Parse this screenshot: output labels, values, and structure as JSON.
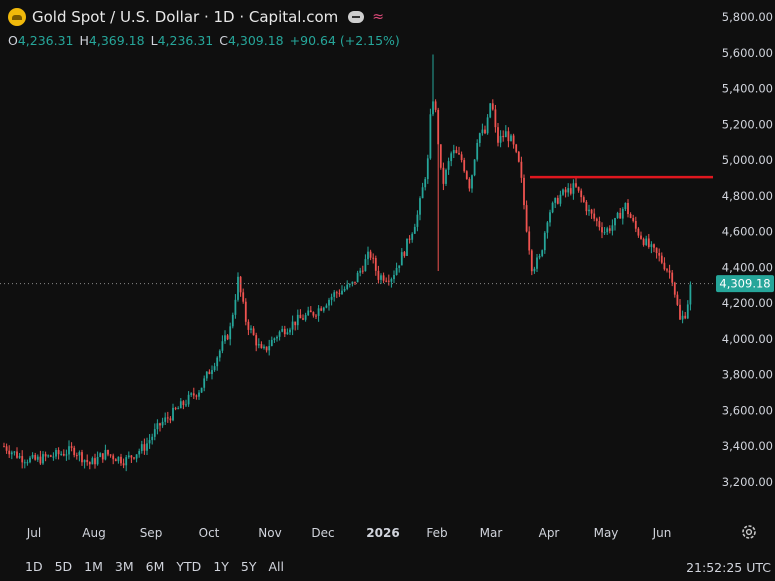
{
  "header": {
    "title": "Gold Spot / U.S. Dollar · 1D · Capital.com",
    "ohlc": [
      {
        "k": "O",
        "v": "4,236.31"
      },
      {
        "k": "H",
        "v": "4,369.18"
      },
      {
        "k": "L",
        "v": "4,236.31"
      },
      {
        "k": "C",
        "v": "4,309.18"
      }
    ],
    "change": "+90.64 (+2.15%)"
  },
  "price_axis": {
    "labels": [
      "5,800.00",
      "5,600.00",
      "5,400.00",
      "5,200.00",
      "5,000.00",
      "4,800.00",
      "4,600.00",
      "4,400.00",
      "4,200.00",
      "4,000.00",
      "3,800.00",
      "3,600.00",
      "3,400.00",
      "3,200.00"
    ],
    "current_price": "4,309.18"
  },
  "time_axis": {
    "labels": [
      "Jul",
      "Aug",
      "Sep",
      "Oct",
      "Nov",
      "Dec",
      "2026",
      "Feb",
      "Mar",
      "Apr",
      "May",
      "Jun"
    ]
  },
  "timeframes": [
    "1D",
    "5D",
    "1M",
    "3M",
    "6M",
    "YTD",
    "1Y",
    "5Y",
    "All"
  ],
  "clock": "21:52:25 UTC",
  "colors": {
    "up": "#26a69a",
    "down": "#ef5350",
    "hline": "#e0171f",
    "background": "#0f0f0f"
  },
  "chart_data": {
    "type": "candlestick",
    "symbol": "Gold Spot / U.S. Dollar",
    "interval": "1D",
    "ylim": [
      3150,
      5900
    ],
    "horizontal_line": 4905,
    "last_price": 4309.18,
    "monthly_path": [
      {
        "month": "Jul",
        "price": 3340
      },
      {
        "month": "Aug",
        "price": 3380
      },
      {
        "month": "Sep",
        "price": 3480
      },
      {
        "month": "Oct",
        "price": 3900
      },
      {
        "month": "Nov",
        "price": 4000
      },
      {
        "month": "Dec",
        "price": 4200
      },
      {
        "month": "2026",
        "price": 4400
      },
      {
        "month": "Feb",
        "price": 4900
      },
      {
        "month": "Mar",
        "price": 5100
      },
      {
        "month": "Apr",
        "price": 4680
      },
      {
        "month": "May",
        "price": 4640
      },
      {
        "month": "Jun",
        "price": 4440
      }
    ]
  }
}
